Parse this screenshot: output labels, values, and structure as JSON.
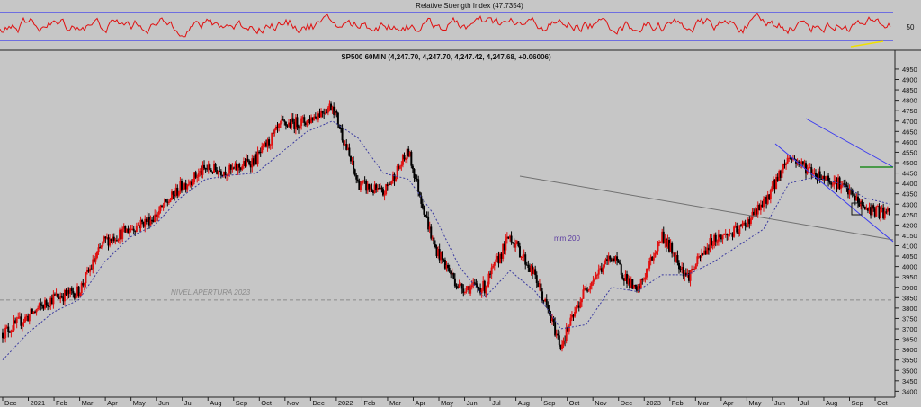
{
  "rsi_panel": {
    "title": "Relative Strength Index (47.7354)",
    "level_label": "50",
    "upper_level": 70,
    "lower_level": 30,
    "colors": {
      "line": "#e01010",
      "bands": "#3a3af0",
      "trend": "#f0e000"
    }
  },
  "price_panel": {
    "title": "SP500 60MIN (4,247.70, 4,247.70, 4,247.42, 4,247.68, +0.06006)",
    "ma_label": "mm 200",
    "open_level_label": "NIVEL APERTURA 2023",
    "open_level_value": 3839,
    "colors": {
      "candles_up": "#e01010",
      "candles_down": "#000000",
      "ma": "#3a3aa0",
      "channel": "#3a3af0",
      "trendline": "#707070",
      "resistance": "#008000",
      "open_level": "#8a8a8a"
    }
  },
  "chart_data": {
    "type": "line",
    "x": [
      "Dec 2020",
      "Jan 2021",
      "Feb",
      "Mar",
      "Apr",
      "May",
      "Jun",
      "Jul",
      "Aug",
      "Sep",
      "Oct",
      "Nov",
      "Dec",
      "Jan 2022",
      "Feb",
      "Mar",
      "Apr",
      "May",
      "Jun",
      "Jul",
      "Aug",
      "Sep",
      "Oct",
      "Nov",
      "Dec",
      "Jan 2023",
      "Feb",
      "Mar",
      "Apr",
      "May",
      "Jun",
      "Jul",
      "Aug",
      "Sep",
      "Oct",
      "Oct 2023 end"
    ],
    "series": [
      {
        "values": [
          3680,
          3760,
          3850,
          3880,
          4120,
          4180,
          4240,
          4380,
          4470,
          4460,
          4520,
          4680,
          4700,
          4780,
          4400,
          4350,
          4550,
          4100,
          3900,
          3900,
          4150,
          3950,
          3620,
          3900,
          4050,
          3870,
          4150,
          3950,
          4130,
          4170,
          4300,
          4530,
          4450,
          4400,
          4280,
          4247
        ]
      },
      {
        "name": "mm 200",
        "values": [
          3550,
          3680,
          3780,
          3840,
          4020,
          4140,
          4200,
          4330,
          4420,
          4440,
          4450,
          4550,
          4650,
          4700,
          4620,
          4450,
          4420,
          4250,
          4000,
          3850,
          3980,
          3880,
          3700,
          3720,
          3900,
          3880,
          3960,
          3960,
          4020,
          4100,
          4180,
          4400,
          4430,
          4400,
          4330,
          4300
        ]
      }
    ],
    "ylim": [
      3380,
      4980
    ],
    "ytick_labels": [
      "3400",
      "3450",
      "3500",
      "3550",
      "3600",
      "3650",
      "3700",
      "3750",
      "3800",
      "3850",
      "3900",
      "3950",
      "4000",
      "4050",
      "4100",
      "4150",
      "4200",
      "4250",
      "4300",
      "4350",
      "4400",
      "4450",
      "4500",
      "4550",
      "4600",
      "4650",
      "4700",
      "4750",
      "4800",
      "4850",
      "4900",
      "4950"
    ],
    "xtick_labels": [
      "Dec",
      "2021",
      "Feb",
      "Mar",
      "Apr",
      "May",
      "Jun",
      "Jul",
      "Aug",
      "Sep",
      "Oct",
      "Nov",
      "Dec",
      "2022",
      "Feb",
      "Mar",
      "Apr",
      "May",
      "Jun",
      "Jul",
      "Aug",
      "Sep",
      "Oct",
      "Nov",
      "Dec",
      "2023",
      "Feb",
      "Mar",
      "Apr",
      "May",
      "Jun",
      "Jul",
      "Aug",
      "Sep",
      "Oct"
    ],
    "grid": false
  }
}
